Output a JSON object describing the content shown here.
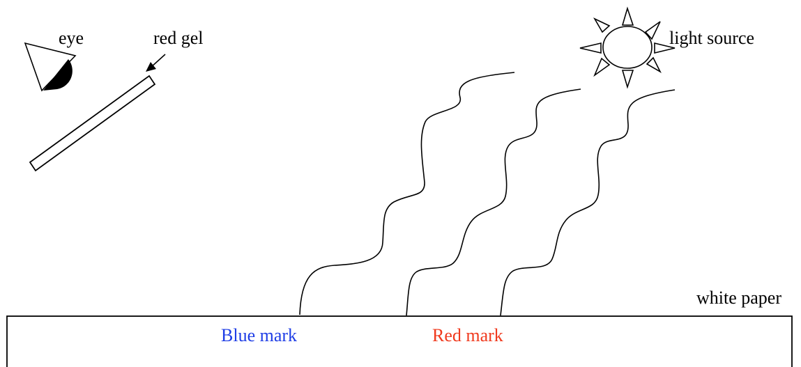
{
  "labels": {
    "eye": "eye",
    "red_gel": "red gel",
    "light_source": "light source",
    "white_paper": "white paper",
    "blue_mark": "Blue mark",
    "red_mark": "Red mark"
  },
  "colors": {
    "ink": "#000000",
    "blue_mark": "#1f3ee6",
    "red_mark": "#f03a1e",
    "paper": "#ffffff"
  },
  "icons": {
    "eye": "eye-icon",
    "sun": "sun-icon"
  }
}
